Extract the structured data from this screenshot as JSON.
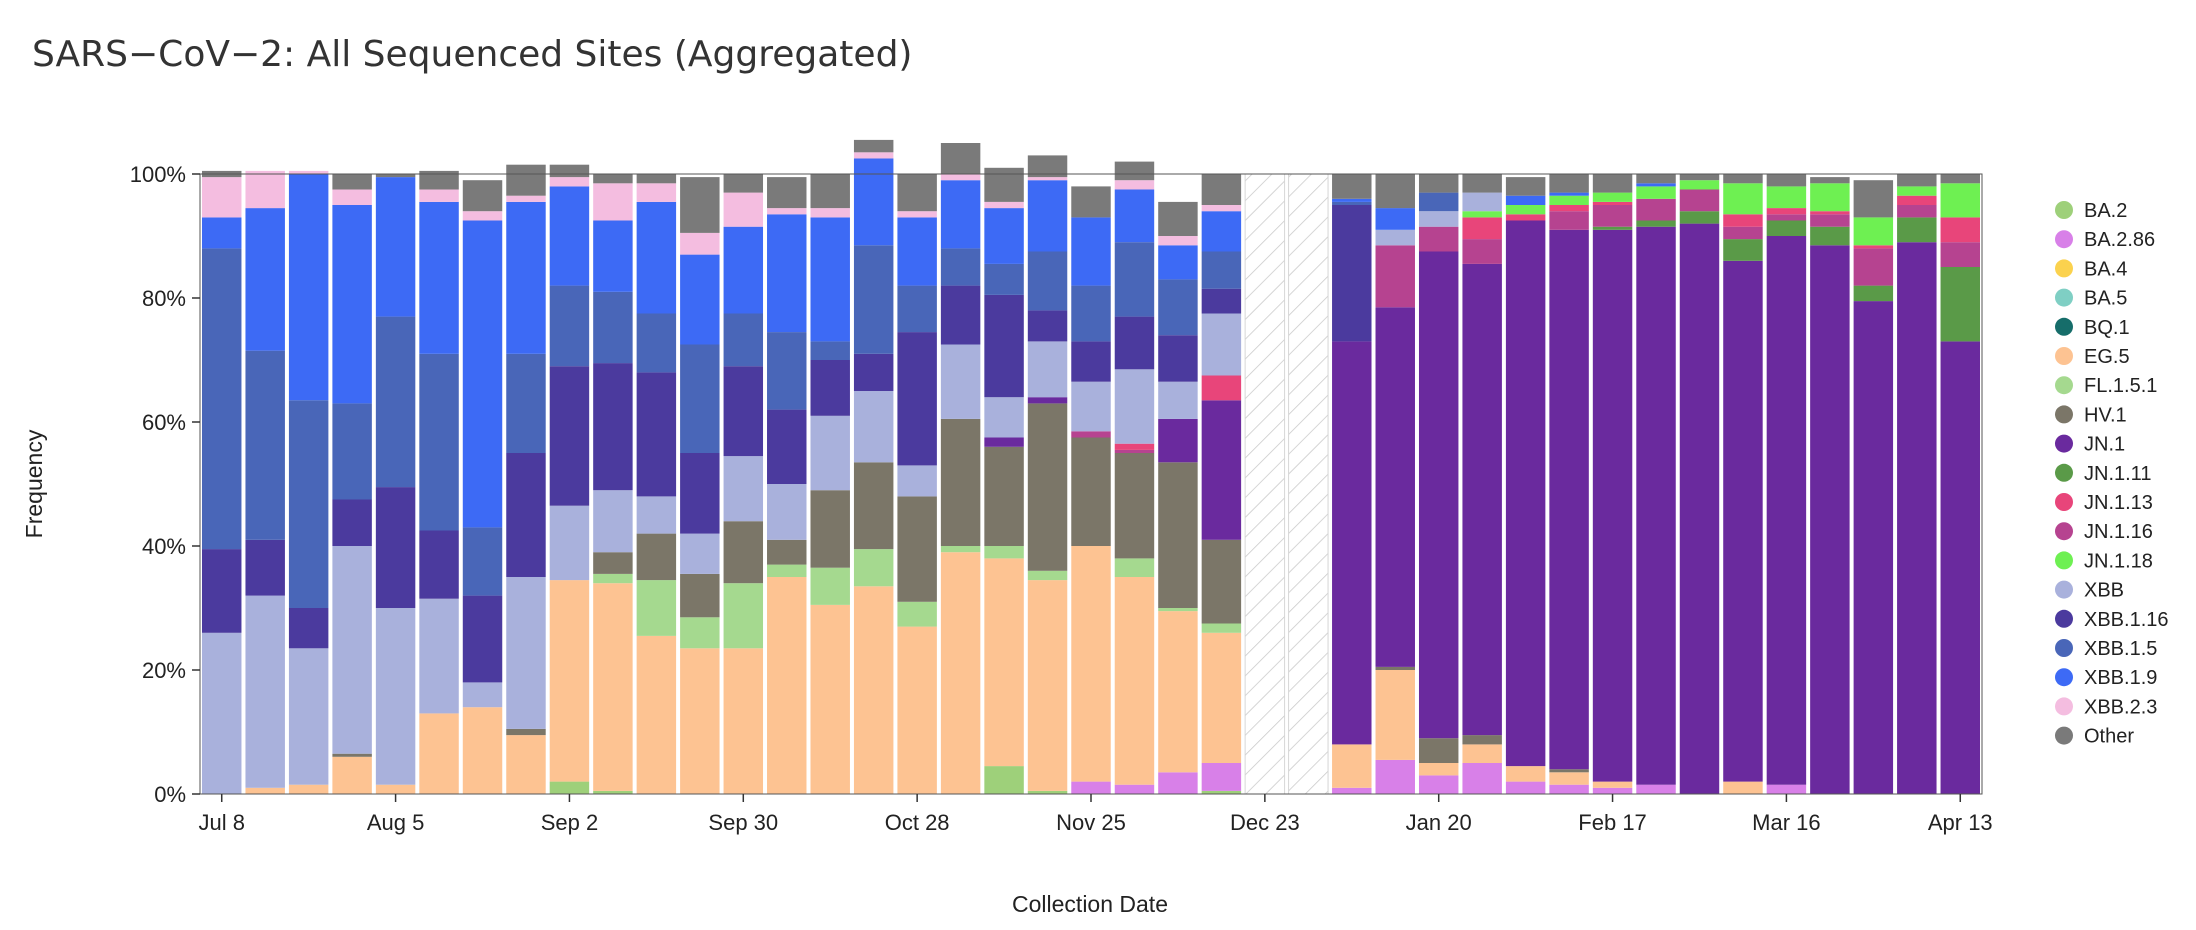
{
  "chart_data": {
    "type": "bar",
    "stacked": true,
    "title": "SARS−CoV−2: All Sequenced Sites (Aggregated)",
    "xlabel": "Collection Date",
    "ylabel": "Frequency",
    "ylim": [
      0,
      100
    ],
    "yticks": [
      "0%",
      "20%",
      "40%",
      "60%",
      "80%",
      "100%"
    ],
    "xtick_labels": [
      "Jul 8",
      "Aug 5",
      "Sep 2",
      "Sep 30",
      "Oct 28",
      "Nov 25",
      "Dec 23",
      "Jan 20",
      "Feb 17",
      "Mar 16",
      "Apr 13"
    ],
    "weeks": [
      "Jul 8",
      "Jul 15",
      "Jul 22",
      "Jul 29",
      "Aug 5",
      "Aug 12",
      "Aug 19",
      "Aug 26",
      "Sep 2",
      "Sep 9",
      "Sep 16",
      "Sep 23",
      "Sep 30",
      "Oct 7",
      "Oct 14",
      "Oct 21",
      "Oct 28",
      "Nov 4",
      "Nov 11",
      "Nov 18",
      "Nov 25",
      "Dec 2",
      "Dec 9",
      "Dec 16",
      "Dec 23",
      "Dec 30",
      "Jan 6",
      "Jan 13",
      "Jan 20",
      "Jan 27",
      "Feb 3",
      "Feb 10",
      "Feb 17",
      "Feb 24",
      "Mar 2",
      "Mar 9",
      "Mar 16",
      "Mar 23",
      "Mar 30",
      "Apr 6",
      "Apr 13"
    ],
    "missing_weeks": [
      "Dec 23",
      "Dec 30"
    ],
    "variants": [
      "BA.2",
      "BA.2.86",
      "BA.4",
      "BA.5",
      "BQ.1",
      "EG.5",
      "FL.1.5.1",
      "HV.1",
      "JN.1",
      "JN.1.11",
      "JN.1.13",
      "JN.1.16",
      "JN.1.18",
      "XBB",
      "XBB.1.16",
      "XBB.1.5",
      "XBB.1.9",
      "XBB.2.3",
      "Other"
    ],
    "colors": {
      "BA.2": "#9ed07a",
      "BA.2.86": "#d880e8",
      "BA.4": "#fbd24e",
      "BA.5": "#7fcfc4",
      "BQ.1": "#166d6a",
      "EG.5": "#fdc392",
      "FL.1.5.1": "#a5d98f",
      "HV.1": "#7b7668",
      "JN.1": "#6a2a9e",
      "JN.1.11": "#5a9a48",
      "JN.1.13": "#e8457a",
      "JN.1.16": "#b64390",
      "JN.1.18": "#6ef052",
      "XBB": "#a9b1dc",
      "XBB.1.16": "#4b3a9e",
      "XBB.1.5": "#4966b8",
      "XBB.1.9": "#3d6af5",
      "XBB.2.3": "#f4bde0",
      "Other": "#7a7a7a"
    },
    "series_order_bottom_to_top": [
      "BA.2",
      "BA.2.86",
      "EG.5",
      "FL.1.5.1",
      "HV.1",
      "JN.1",
      "JN.1.11",
      "JN.1.16",
      "JN.1.13",
      "JN.1.18",
      "XBB",
      "XBB.1.16",
      "XBB.1.5",
      "XBB.1.9",
      "XBB.2.3",
      "Other"
    ],
    "series": [
      {
        "name": "BA.2",
        "values": [
          0,
          0,
          0,
          0,
          0,
          0,
          0,
          0,
          2,
          0.5,
          0,
          0,
          0,
          0,
          0,
          0,
          0,
          0,
          4.5,
          0.5,
          0,
          0,
          0,
          0.5,
          0,
          0,
          0,
          0,
          0,
          0,
          0,
          0,
          0,
          0,
          0,
          0,
          0,
          0,
          0,
          0,
          0
        ]
      },
      {
        "name": "BA.2.86",
        "values": [
          0,
          0,
          0,
          0,
          0,
          0,
          0,
          0,
          0,
          0,
          0,
          0,
          0,
          0,
          0,
          0,
          0,
          0,
          0,
          0,
          2,
          1.5,
          3.5,
          4.5,
          0,
          0,
          1,
          5.5,
          3,
          5,
          2,
          1.5,
          1,
          1.5,
          0,
          0,
          1.5,
          0,
          0,
          0,
          0
        ]
      },
      {
        "name": "EG.5",
        "values": [
          0,
          1,
          1.5,
          6,
          1.5,
          13,
          14,
          9.5,
          32.5,
          33.5,
          25.5,
          23.5,
          23.5,
          35,
          30.5,
          33.5,
          27,
          39,
          33.5,
          34,
          38,
          33.5,
          26,
          21,
          0,
          0,
          7,
          14.5,
          2,
          3,
          2.5,
          2,
          1,
          0,
          0,
          2,
          0,
          0,
          0,
          0,
          0
        ]
      },
      {
        "name": "FL.1.5.1",
        "values": [
          0,
          0,
          0,
          0,
          0,
          0,
          0,
          0,
          0,
          1.5,
          9,
          5,
          10.5,
          2,
          6,
          6,
          4,
          1,
          2,
          1.5,
          0,
          3,
          0.5,
          1.5,
          0,
          0,
          0,
          0,
          0,
          0,
          0,
          0,
          0,
          0,
          0,
          0,
          0,
          0,
          0,
          0,
          0
        ]
      },
      {
        "name": "HV.1",
        "values": [
          0,
          0,
          0,
          0.5,
          0,
          0,
          0,
          1,
          0,
          3.5,
          7.5,
          7,
          10,
          4,
          12.5,
          14,
          17,
          20.5,
          16,
          27,
          17.5,
          17,
          23.5,
          13.5,
          0,
          0,
          0,
          0.5,
          4,
          1.5,
          0,
          0.5,
          0,
          0,
          0,
          0,
          0,
          0,
          0,
          0,
          0
        ]
      },
      {
        "name": "JN.1",
        "values": [
          0,
          0,
          0,
          0,
          0,
          0,
          0,
          0,
          0,
          0,
          0,
          0,
          0,
          0,
          0,
          0,
          0,
          0,
          1.5,
          1,
          0,
          0,
          7,
          22.5,
          0,
          0,
          65,
          58,
          78.5,
          76,
          88,
          87,
          89,
          90,
          92,
          84,
          88.5,
          88.5,
          79.5,
          89,
          73
        ]
      },
      {
        "name": "JN.1.11",
        "values": [
          0,
          0,
          0,
          0,
          0,
          0,
          0,
          0,
          0,
          0,
          0,
          0,
          0,
          0,
          0,
          0,
          0,
          0,
          0,
          0,
          0,
          0,
          0,
          0,
          0,
          0,
          0,
          0,
          0,
          0,
          0,
          0,
          0.5,
          1,
          2,
          3.5,
          2.5,
          3,
          2.5,
          4,
          12
        ]
      },
      {
        "name": "JN.1.16",
        "values": [
          0,
          0,
          0,
          0,
          0,
          0,
          0,
          0,
          0,
          0,
          0,
          0,
          0,
          0,
          0,
          0,
          0,
          0,
          0,
          0,
          1,
          0.5,
          0,
          0,
          0,
          0,
          0,
          10,
          4,
          4,
          0,
          3,
          3.5,
          3.5,
          3.5,
          2,
          1,
          2,
          6,
          2,
          4
        ]
      },
      {
        "name": "JN.1.13",
        "values": [
          0,
          0,
          0,
          0,
          0,
          0,
          0,
          0,
          0,
          0,
          0,
          0,
          0,
          0,
          0,
          0,
          0,
          0,
          0,
          0,
          0,
          1,
          0,
          4,
          0,
          0,
          0,
          0,
          0,
          3.5,
          1,
          1,
          0.5,
          0,
          0,
          2,
          1,
          0.5,
          0.5,
          1.5,
          4
        ]
      },
      {
        "name": "JN.1.18",
        "values": [
          0,
          0,
          0,
          0,
          0,
          0,
          0,
          0,
          0,
          0,
          0,
          0,
          0,
          0,
          0,
          0,
          0,
          0,
          0,
          0,
          0,
          0,
          0,
          0,
          0,
          0,
          0,
          0,
          0,
          1,
          1.5,
          1.5,
          1.5,
          2,
          1.5,
          5,
          3.5,
          4.5,
          4.5,
          1.5,
          5.5
        ]
      },
      {
        "name": "XBB",
        "values": [
          26,
          31,
          22,
          33.5,
          28.5,
          18.5,
          4,
          24.5,
          12,
          10,
          6,
          6.5,
          10.5,
          9,
          12,
          11.5,
          5,
          12,
          6.5,
          9,
          8,
          12,
          6,
          10,
          0,
          0,
          0,
          2.5,
          2.5,
          3,
          0,
          0,
          0,
          0,
          0,
          0,
          0,
          0,
          0,
          0,
          0
        ]
      },
      {
        "name": "XBB.1.16",
        "values": [
          13.5,
          9,
          6.5,
          7.5,
          19.5,
          11,
          14,
          20,
          22.5,
          20.5,
          20,
          13,
          14.5,
          12,
          9,
          6,
          21.5,
          9.5,
          16.5,
          5,
          6.5,
          8.5,
          7.5,
          4,
          0,
          0,
          22,
          0,
          0,
          0,
          0,
          0,
          0,
          0,
          0,
          0,
          0,
          0,
          0,
          0,
          0
        ]
      },
      {
        "name": "XBB.1.5",
        "values": [
          48.5,
          30.5,
          33.5,
          15.5,
          27.5,
          28.5,
          11,
          16,
          13,
          11.5,
          9.5,
          17.5,
          8.5,
          12.5,
          3,
          17.5,
          7.5,
          6,
          5,
          9.5,
          9,
          12,
          9,
          6,
          0,
          0,
          0.5,
          0,
          3,
          0,
          0,
          0,
          0,
          0,
          0,
          0,
          0,
          0,
          0,
          0,
          0
        ]
      },
      {
        "name": "XBB.1.9",
        "values": [
          5,
          23,
          36.5,
          32,
          22.5,
          24.5,
          49.5,
          24.5,
          16,
          11.5,
          18,
          14.5,
          14,
          19,
          20,
          14,
          11,
          11,
          9,
          11.5,
          11,
          8.5,
          5.5,
          6.5,
          0,
          0,
          0.5,
          3.5,
          0,
          0,
          1.5,
          0.5,
          0,
          0.5,
          0,
          0,
          0,
          0,
          0,
          0,
          0
        ]
      },
      {
        "name": "XBB.2.3",
        "values": [
          6.5,
          6,
          0.5,
          2.5,
          0,
          2,
          1.5,
          1,
          1.5,
          6,
          3,
          3.5,
          5.5,
          1,
          1.5,
          1,
          1,
          1,
          1,
          0.5,
          0,
          1.5,
          1.5,
          1,
          0,
          0,
          0,
          0,
          0,
          0,
          0,
          0,
          0,
          0,
          0,
          0,
          0,
          0,
          0,
          0,
          0
        ]
      },
      {
        "name": "Other",
        "values": [
          1,
          0,
          0,
          2.5,
          0.5,
          3,
          5,
          5,
          2,
          1.5,
          1.5,
          9,
          3,
          5,
          5.5,
          2,
          6,
          5,
          5.5,
          3.5,
          5,
          3,
          5.5,
          5,
          0,
          0,
          4,
          5.5,
          3,
          3,
          3,
          3,
          3,
          1.5,
          1,
          1.5,
          2,
          1,
          6,
          2,
          1.5
        ]
      }
    ],
    "legend_position": "right"
  }
}
